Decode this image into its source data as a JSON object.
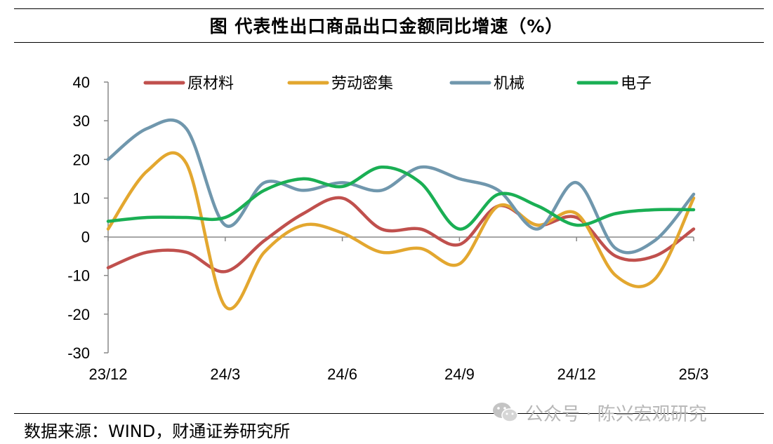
{
  "title": "图  代表性出口商品出口金额同比增速（%）",
  "source": "数据来源：WIND，财通证券研究所",
  "watermark": "公众号 · 陈兴宏观研究",
  "chart_data": {
    "type": "line",
    "title": "图  代表性出口商品出口金额同比增速（%）",
    "xlabel": "",
    "ylabel": "",
    "ylim": [
      -30,
      40
    ],
    "yticks": [
      40,
      30,
      20,
      10,
      0,
      -10,
      -20,
      -30
    ],
    "x": [
      "23/12",
      "24/1",
      "24/2",
      "24/3",
      "24/4",
      "24/5",
      "24/6",
      "24/7",
      "24/8",
      "24/9",
      "24/10",
      "24/11",
      "24/12",
      "25/1",
      "25/2",
      "25/3"
    ],
    "xtick_labels": [
      "23/12",
      "24/3",
      "24/6",
      "24/9",
      "24/12",
      "25/3"
    ],
    "grid": false,
    "legend_position": "top",
    "series": [
      {
        "name": "原材料",
        "color": "#C0504D",
        "values": [
          -8,
          -4,
          -4,
          -9,
          -1,
          6,
          10,
          2,
          2,
          -2,
          8,
          3,
          5,
          -5,
          -5,
          2
        ]
      },
      {
        "name": "劳动密集",
        "color": "#E3A72F",
        "values": [
          2,
          17,
          19,
          -18,
          -4,
          3,
          1,
          -4,
          -3,
          -7,
          8,
          3,
          6,
          -10,
          -11,
          10
        ]
      },
      {
        "name": "机械",
        "color": "#7097AD",
        "values": [
          20,
          28,
          28,
          3,
          14,
          12,
          14,
          12,
          18,
          15,
          12,
          2,
          14,
          -3,
          -1,
          11
        ]
      },
      {
        "name": "电子",
        "color": "#1AAF54",
        "values": [
          4,
          5,
          5,
          5,
          12,
          15,
          13,
          18,
          14,
          2,
          11,
          8,
          3,
          6,
          7,
          7
        ]
      }
    ]
  }
}
